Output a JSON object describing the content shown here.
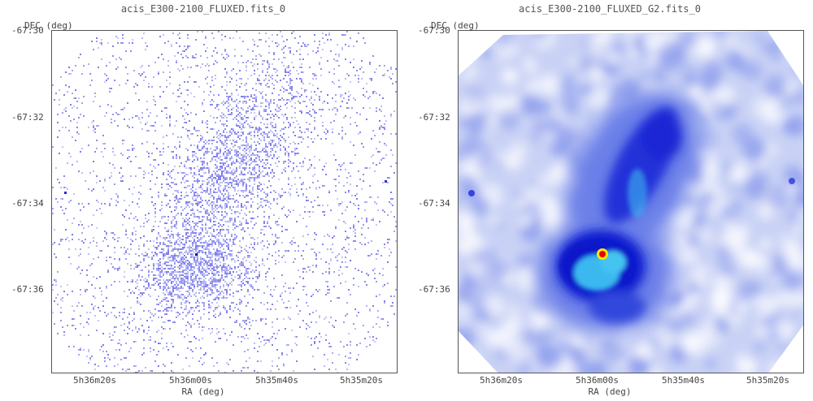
{
  "panels": [
    {
      "title": "acis_E300-2100_FLUXED.fits_0",
      "y_title": "DEC (deg)",
      "x_title": "RA (deg)",
      "y_ticks": [
        "-67:30",
        "-67:32",
        "-67:34",
        "-67:36"
      ],
      "x_ticks": [
        "5h36m20s",
        "5h36m00s",
        "5h35m40s",
        "5h35m20s"
      ]
    },
    {
      "title": "acis_E300-2100_FLUXED_G2.fits_0",
      "y_title": "DEC (deg)",
      "x_title": "RA (deg)",
      "y_ticks": [
        "-67:30",
        "-67:32",
        "-67:34",
        "-67:36"
      ],
      "x_ticks": [
        "5h36m20s",
        "5h36m00s",
        "5h35m40s",
        "5h35m20s"
      ]
    }
  ],
  "colors": {
    "raw_counts": "#6a6ae8",
    "smooth_low": "#d8def8",
    "smooth_mid": "#5a6ee6",
    "smooth_high": "#0a1ad0",
    "peak_cyan": "#3ab8f0",
    "peak_center": "#e60000",
    "peak_ring": "#ffe600"
  }
}
